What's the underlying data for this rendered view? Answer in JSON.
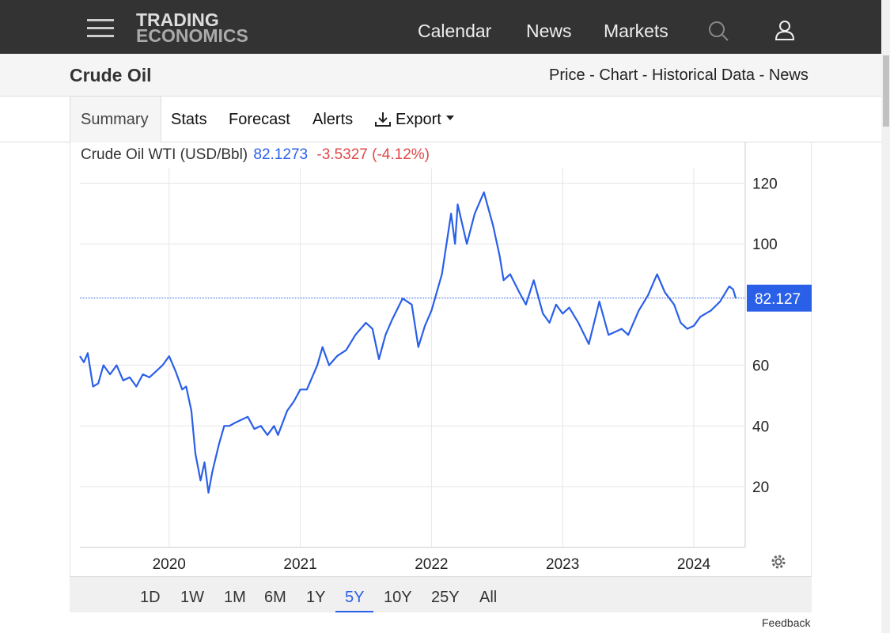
{
  "nav": {
    "logo_line1": "TRADING",
    "logo_line2": "ECONOMICS",
    "links": [
      "Calendar",
      "News",
      "Markets"
    ]
  },
  "header": {
    "title": "Crude Oil",
    "links": "Price - Chart - Historical Data - News"
  },
  "tabs": [
    "Summary",
    "Stats",
    "Forecast",
    "Alerts",
    "Export"
  ],
  "chart_data": {
    "type": "line",
    "title": "Crude Oil WTI (USD/Bbl)",
    "price": "82.1273",
    "change": "-3.5327",
    "change_pct": "(-4.12%)",
    "color": "#2a5fe8",
    "last_value": 82.127,
    "x": [
      2019.32,
      2019.35,
      2019.38,
      2019.42,
      2019.46,
      2019.5,
      2019.55,
      2019.6,
      2019.65,
      2019.7,
      2019.75,
      2019.8,
      2019.85,
      2019.9,
      2019.95,
      2020.0,
      2020.05,
      2020.1,
      2020.13,
      2020.17,
      2020.2,
      2020.24,
      2020.27,
      2020.3,
      2020.33,
      2020.38,
      2020.42,
      2020.46,
      2020.5,
      2020.55,
      2020.6,
      2020.65,
      2020.7,
      2020.75,
      2020.8,
      2020.83,
      2020.9,
      2020.95,
      2021.0,
      2021.05,
      2021.13,
      2021.17,
      2021.22,
      2021.28,
      2021.35,
      2021.42,
      2021.5,
      2021.55,
      2021.6,
      2021.65,
      2021.7,
      2021.78,
      2021.85,
      2021.9,
      2021.95,
      2022.0,
      2022.08,
      2022.15,
      2022.18,
      2022.2,
      2022.27,
      2022.33,
      2022.4,
      2022.47,
      2022.52,
      2022.55,
      2022.6,
      2022.67,
      2022.72,
      2022.78,
      2022.85,
      2022.9,
      2022.95,
      2023.0,
      2023.05,
      2023.12,
      2023.2,
      2023.28,
      2023.35,
      2023.45,
      2023.5,
      2023.58,
      2023.65,
      2023.72,
      2023.78,
      2023.85,
      2023.9,
      2023.95,
      2024.0,
      2024.05,
      2024.13,
      2024.2,
      2024.27,
      2024.3,
      2024.32
    ],
    "values": [
      63,
      61,
      64,
      53,
      54,
      60,
      57,
      60,
      55,
      56,
      53,
      57,
      56,
      58,
      60,
      63,
      58,
      52,
      53,
      45,
      31,
      22,
      28,
      18,
      25,
      34,
      40,
      40,
      41,
      42,
      43,
      39,
      40,
      37,
      40,
      37,
      45,
      48,
      52,
      52,
      60,
      66,
      60,
      63,
      65,
      70,
      74,
      72,
      62,
      70,
      75,
      82,
      80,
      66,
      73,
      78,
      90,
      110,
      100,
      113,
      100,
      110,
      117,
      106,
      96,
      88,
      90,
      84,
      80,
      88,
      77,
      74,
      80,
      77,
      79,
      74,
      67,
      81,
      70,
      72,
      70,
      78,
      83,
      90,
      84,
      80,
      74,
      72,
      73,
      76,
      78,
      81,
      86,
      85,
      82
    ],
    "xlim": [
      2019.32,
      2024.38
    ],
    "xticks": [
      2020,
      2021,
      2022,
      2023,
      2024
    ],
    "ylim": [
      0,
      132
    ],
    "yticks": [
      20,
      40,
      60,
      100,
      120
    ],
    "grid": true
  },
  "ranges": [
    "1D",
    "1W",
    "1M",
    "6M",
    "1Y",
    "5Y",
    "10Y",
    "25Y",
    "All"
  ],
  "active_range": 5,
  "feedback": "Feedback"
}
